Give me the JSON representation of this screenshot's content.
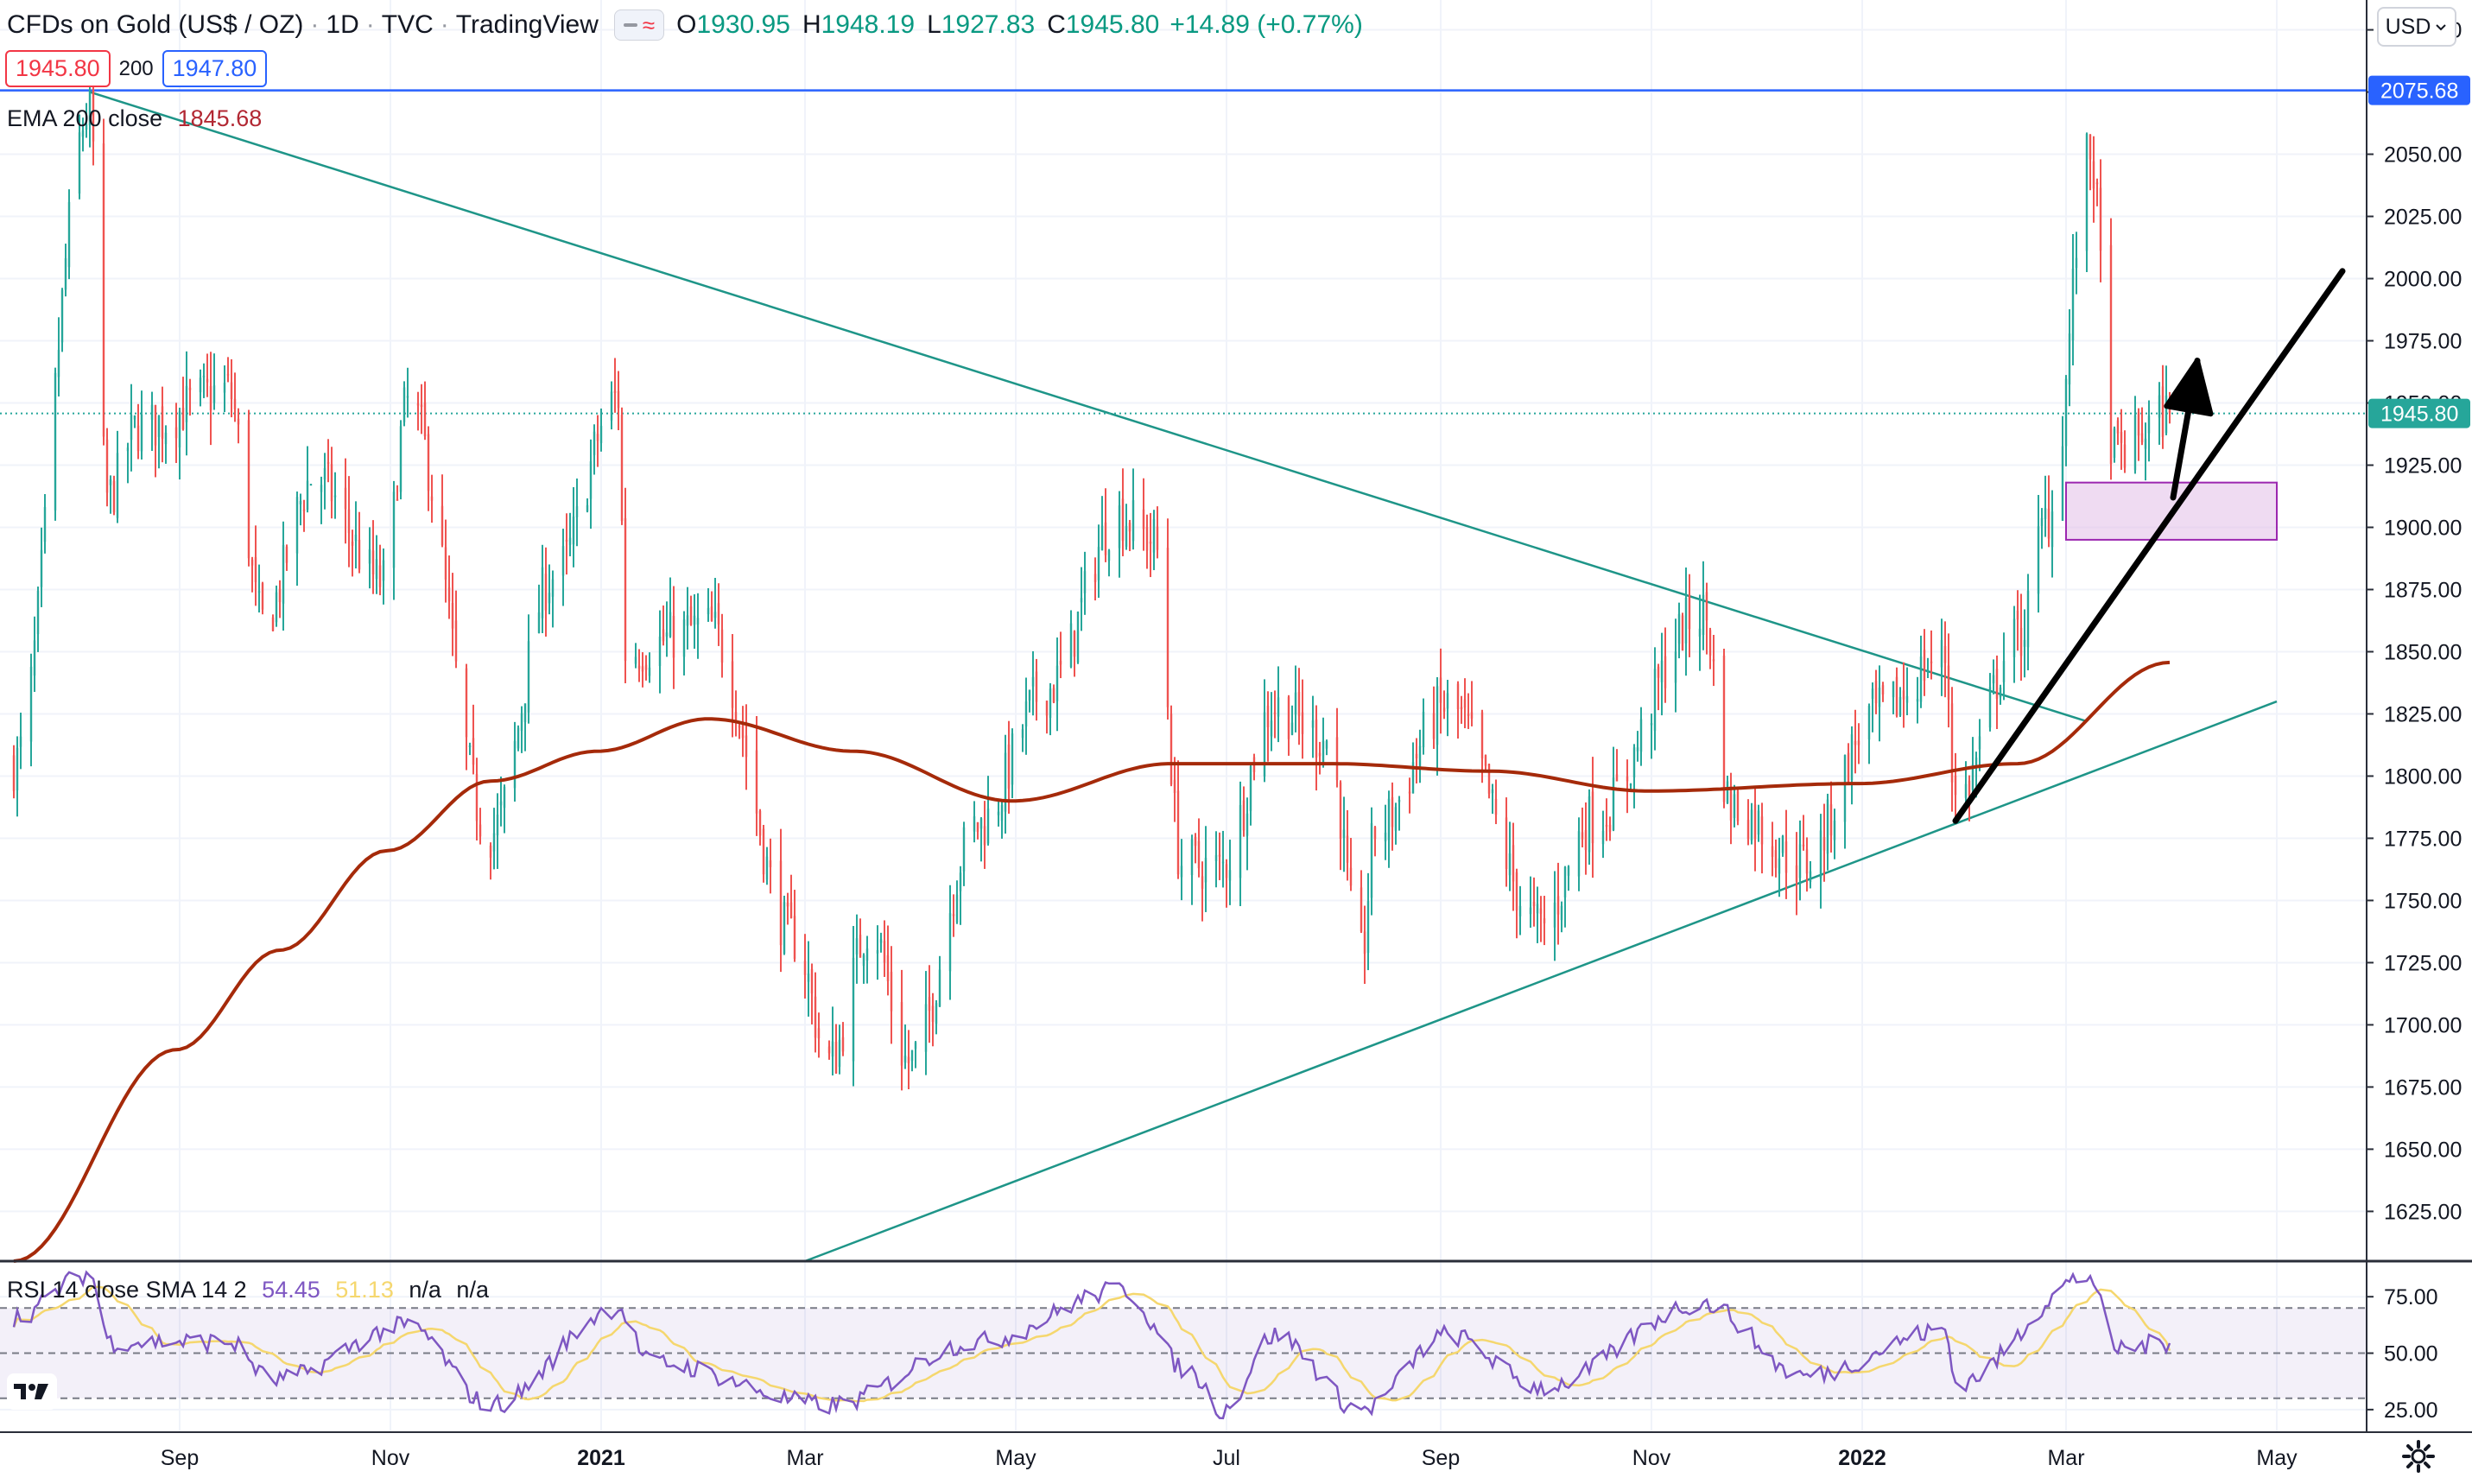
{
  "header": {
    "symbol": "CFDs on Gold (US$ / OZ)",
    "interval": "1D",
    "exchange": "TVC",
    "platform": "TradingView",
    "ohlc": {
      "open_label": "O",
      "open": "1930.95",
      "high_label": "H",
      "high": "1948.19",
      "low_label": "L",
      "low": "1927.83",
      "close_label": "C",
      "close": "1945.80",
      "change": "+14.89 (+0.77%)"
    },
    "visibility_icons": [
      "eye-dash-icon",
      "wave-icon"
    ]
  },
  "price_boxes": {
    "bid": "1945.80",
    "spread": "200",
    "ask": "1947.80"
  },
  "indicators": {
    "ema": {
      "label": "EMA 200 close",
      "value": "1845.68"
    },
    "rsi": {
      "label": "RSI 14 close SMA 14 2",
      "rsi_value": "54.45",
      "sma_value": "51.13",
      "na1": "n/a",
      "na2": "n/a"
    }
  },
  "currency": {
    "label": "USD",
    "icon": "chevron-down-icon"
  },
  "settings": {
    "icon": "gear-icon"
  },
  "logo": {
    "icon": "tradingview-logo-icon"
  },
  "colors": {
    "up": "#26a69a",
    "down": "#ef5350",
    "ema": "#a52a0a",
    "trendline": "#1e9588",
    "hline": "#2962ff",
    "rsi": "#7e57c2",
    "rsi_sma": "#f5d76e",
    "zone": "#e1bee7"
  },
  "price_axis": {
    "ticks": [
      "2100.00",
      "2075.00",
      "2050.00",
      "2025.00",
      "2000.00",
      "1975.00",
      "1950.00",
      "1925.00",
      "1900.00",
      "1875.00",
      "1850.00",
      "1825.00",
      "1800.00",
      "1775.00",
      "1750.00",
      "1725.00",
      "1700.00",
      "1675.00",
      "1650.00",
      "1625.00"
    ],
    "last_price_label": "1945.80",
    "hline_label": "2075.68"
  },
  "rsi_axis": {
    "ticks": [
      "75.00",
      "50.00",
      "25.00"
    ]
  },
  "time_axis": {
    "labels": [
      "Sep",
      "Nov",
      "2021",
      "Mar",
      "May",
      "Jul",
      "Sep",
      "Nov",
      "2022",
      "Mar",
      "May"
    ],
    "bold": [
      false,
      false,
      true,
      false,
      false,
      false,
      false,
      false,
      true,
      false,
      false
    ]
  },
  "chart_data": {
    "type": "candlestick",
    "symbol": "CFDs on Gold (US$ / OZ)",
    "interval": "1D",
    "price_range": [
      1605,
      2112
    ],
    "horizontal_line": 2075.68,
    "last_close": 1945.8,
    "ema_200_last": 1845.68,
    "price_anchors": [
      {
        "date": "2020-07-15",
        "close": 1805
      },
      {
        "date": "2020-08-06",
        "close": 2067
      },
      {
        "date": "2020-08-11",
        "close": 1912
      },
      {
        "date": "2020-08-20",
        "close": 1940
      },
      {
        "date": "2020-09-15",
        "close": 1955
      },
      {
        "date": "2020-09-25",
        "close": 1862
      },
      {
        "date": "2020-10-10",
        "close": 1920
      },
      {
        "date": "2020-10-30",
        "close": 1878
      },
      {
        "date": "2020-11-06",
        "close": 1950
      },
      {
        "date": "2020-11-30",
        "close": 1777
      },
      {
        "date": "2020-12-18",
        "close": 1880
      },
      {
        "date": "2021-01-06",
        "close": 1952
      },
      {
        "date": "2021-01-08",
        "close": 1850
      },
      {
        "date": "2021-02-01",
        "close": 1860
      },
      {
        "date": "2021-02-26",
        "close": 1735
      },
      {
        "date": "2021-03-08",
        "close": 1685
      },
      {
        "date": "2021-03-20",
        "close": 1740
      },
      {
        "date": "2021-03-31",
        "close": 1685
      },
      {
        "date": "2021-04-20",
        "close": 1780
      },
      {
        "date": "2021-05-10",
        "close": 1835
      },
      {
        "date": "2021-05-31",
        "close": 1905
      },
      {
        "date": "2021-06-10",
        "close": 1895
      },
      {
        "date": "2021-06-18",
        "close": 1765
      },
      {
        "date": "2021-06-29",
        "close": 1763
      },
      {
        "date": "2021-07-15",
        "close": 1828
      },
      {
        "date": "2021-07-30",
        "close": 1815
      },
      {
        "date": "2021-08-09",
        "close": 1727
      },
      {
        "date": "2021-08-13",
        "close": 1778
      },
      {
        "date": "2021-09-03",
        "close": 1828
      },
      {
        "date": "2021-09-30",
        "close": 1740
      },
      {
        "date": "2021-10-15",
        "close": 1783
      },
      {
        "date": "2021-11-16",
        "close": 1866
      },
      {
        "date": "2021-11-24",
        "close": 1788
      },
      {
        "date": "2021-12-15",
        "close": 1765
      },
      {
        "date": "2022-01-05",
        "close": 1825
      },
      {
        "date": "2022-01-25",
        "close": 1848
      },
      {
        "date": "2022-01-28",
        "close": 1790
      },
      {
        "date": "2022-02-15",
        "close": 1855
      },
      {
        "date": "2022-02-24",
        "close": 1905
      },
      {
        "date": "2022-03-08",
        "close": 2050
      },
      {
        "date": "2022-03-15",
        "close": 1930
      },
      {
        "date": "2022-03-31",
        "close": 1945.8
      }
    ],
    "ema_200_anchors": [
      {
        "date": "2020-07-15",
        "close": 1605
      },
      {
        "date": "2020-08-31",
        "close": 1690
      },
      {
        "date": "2020-09-30",
        "close": 1730
      },
      {
        "date": "2020-10-31",
        "close": 1770
      },
      {
        "date": "2020-11-30",
        "close": 1798
      },
      {
        "date": "2020-12-31",
        "close": 1810
      },
      {
        "date": "2021-02-01",
        "close": 1823
      },
      {
        "date": "2021-03-15",
        "close": 1810
      },
      {
        "date": "2021-04-30",
        "close": 1790
      },
      {
        "date": "2021-06-15",
        "close": 1805
      },
      {
        "date": "2021-07-31",
        "close": 1805
      },
      {
        "date": "2021-09-15",
        "close": 1802
      },
      {
        "date": "2021-10-31",
        "close": 1794
      },
      {
        "date": "2021-12-31",
        "close": 1797
      },
      {
        "date": "2022-02-15",
        "close": 1805
      },
      {
        "date": "2022-03-31",
        "close": 1845.68
      }
    ],
    "trendlines": [
      {
        "name": "descending-resistance",
        "from": {
          "date": "2020-08-06",
          "price": 2075
        },
        "to": {
          "date": "2022-03-07",
          "price": 1822
        }
      },
      {
        "name": "ascending-support",
        "from": {
          "date": "2021-03-01",
          "price": 1605
        },
        "to": {
          "date": "2022-05-01",
          "price": 1830
        }
      },
      {
        "name": "arrow-long",
        "from": {
          "date": "2022-01-28",
          "price": 1782
        },
        "to": {
          "date": "2022-05-20",
          "price": 2003
        }
      },
      {
        "name": "arrow-short",
        "from": {
          "date": "2022-04-01",
          "price": 1912
        },
        "to": {
          "date": "2022-04-08",
          "price": 1967
        }
      }
    ],
    "zone": {
      "from_date": "2022-03-01",
      "to_date": "2022-05-01",
      "top": 1918,
      "bottom": 1895
    },
    "rsi": {
      "period": 14,
      "smoothing": "SMA 14",
      "last": 54.45,
      "sma_last": 51.13,
      "bands": [
        70,
        50,
        30
      ],
      "range": [
        15,
        90
      ],
      "anchors": [
        {
          "date": "2020-07-15",
          "rsi": 66
        },
        {
          "date": "2020-08-06",
          "rsi": 85
        },
        {
          "date": "2020-08-12",
          "rsi": 55
        },
        {
          "date": "2020-09-15",
          "rsi": 55
        },
        {
          "date": "2020-09-28",
          "rsi": 38
        },
        {
          "date": "2020-11-06",
          "rsi": 62
        },
        {
          "date": "2020-11-30",
          "rsi": 27
        },
        {
          "date": "2021-01-06",
          "rsi": 70
        },
        {
          "date": "2021-01-15",
          "rsi": 46
        },
        {
          "date": "2021-03-08",
          "rsi": 27
        },
        {
          "date": "2021-04-20",
          "rsi": 55
        },
        {
          "date": "2021-06-01",
          "rsi": 78
        },
        {
          "date": "2021-06-20",
          "rsi": 42
        },
        {
          "date": "2021-06-30",
          "rsi": 25
        },
        {
          "date": "2021-07-15",
          "rsi": 58
        },
        {
          "date": "2021-08-09",
          "rsi": 25
        },
        {
          "date": "2021-09-03",
          "rsi": 58
        },
        {
          "date": "2021-09-30",
          "rsi": 35
        },
        {
          "date": "2021-11-16",
          "rsi": 72
        },
        {
          "date": "2021-12-15",
          "rsi": 40
        },
        {
          "date": "2022-01-25",
          "rsi": 60
        },
        {
          "date": "2022-01-28",
          "rsi": 37
        },
        {
          "date": "2022-03-08",
          "rsi": 84
        },
        {
          "date": "2022-03-15",
          "rsi": 52
        },
        {
          "date": "2022-03-31",
          "rsi": 54.45
        }
      ]
    },
    "x_range": [
      "2020-07-11",
      "2022-05-27"
    ]
  }
}
